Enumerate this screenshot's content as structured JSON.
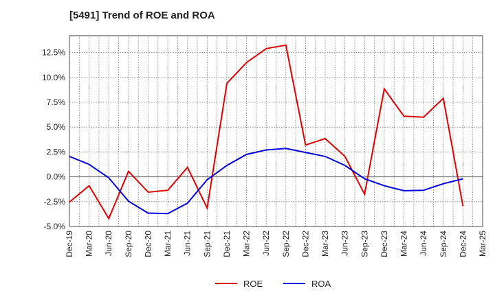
{
  "chart_data": {
    "type": "line",
    "title": "[5491]  Trend of ROE and ROA",
    "xlabel": "",
    "ylabel": "",
    "x": [
      "Dec-19",
      "Mar-20",
      "Jun-20",
      "Sep-20",
      "Dec-20",
      "Mar-21",
      "Jun-21",
      "Sep-21",
      "Dec-21",
      "Mar-22",
      "Jun-22",
      "Sep-22",
      "Dec-22",
      "Mar-23",
      "Jun-23",
      "Sep-23",
      "Dec-23",
      "Mar-24",
      "Jun-24",
      "Sep-24",
      "Dec-24",
      "Mar-25"
    ],
    "y_ticks": [
      "-5.0%",
      "-2.5%",
      "0.0%",
      "2.5%",
      "5.0%",
      "7.5%",
      "10.0%",
      "12.5%"
    ],
    "ylim": [
      -5,
      14.2
    ],
    "grid": true,
    "legend_position": "bottom",
    "series": [
      {
        "name": "ROE",
        "color": "#e00000",
        "values": [
          -2.55,
          -0.9,
          -4.2,
          0.55,
          -1.55,
          -1.35,
          0.95,
          -3.15,
          9.4,
          11.5,
          12.9,
          13.25,
          3.2,
          3.85,
          2.05,
          -1.75,
          8.85,
          6.1,
          6.0,
          7.9,
          -2.95,
          null
        ]
      },
      {
        "name": "ROA",
        "color": "#0000e0",
        "values": [
          2.05,
          1.25,
          -0.1,
          -2.45,
          -3.65,
          -3.7,
          -2.65,
          -0.3,
          1.15,
          2.25,
          2.7,
          2.85,
          2.45,
          2.05,
          1.15,
          -0.2,
          -0.9,
          -1.4,
          -1.35,
          -0.7,
          -0.2,
          null
        ]
      }
    ]
  }
}
